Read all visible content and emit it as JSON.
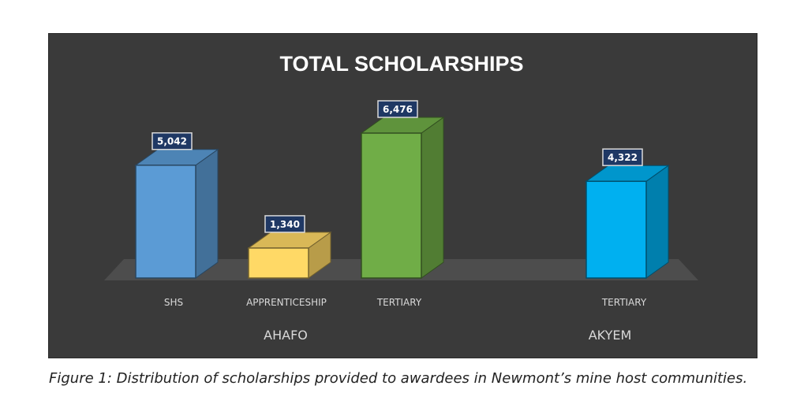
{
  "caption": "Figure 1: Distribution of scholarships provided to awardees in Newmont’s mine host communities.",
  "chart_data": {
    "type": "bar",
    "title": "TOTAL SCHOLARSHIPS",
    "style": "3d-column",
    "groups": [
      {
        "name": "AHAFO",
        "categories": [
          "SHS",
          "APPRENTICESHIP",
          "TERTIARY"
        ]
      },
      {
        "name": "AKYEM",
        "categories": [
          "TERTIARY"
        ]
      }
    ],
    "categories": [
      "SHS",
      "APPRENTICESHIP",
      "TERTIARY",
      "TERTIARY"
    ],
    "values": [
      5042,
      1340,
      6476,
      4322
    ],
    "data_labels": [
      "5,042",
      "1,340",
      "6,476",
      "4,322"
    ],
    "colors": [
      "#5b9bd5",
      "#ffd966",
      "#70ad47",
      "#00b0f0"
    ],
    "ylim": [
      0,
      6476
    ],
    "grid": false,
    "legend": "none",
    "background": "#3a3a3a"
  }
}
